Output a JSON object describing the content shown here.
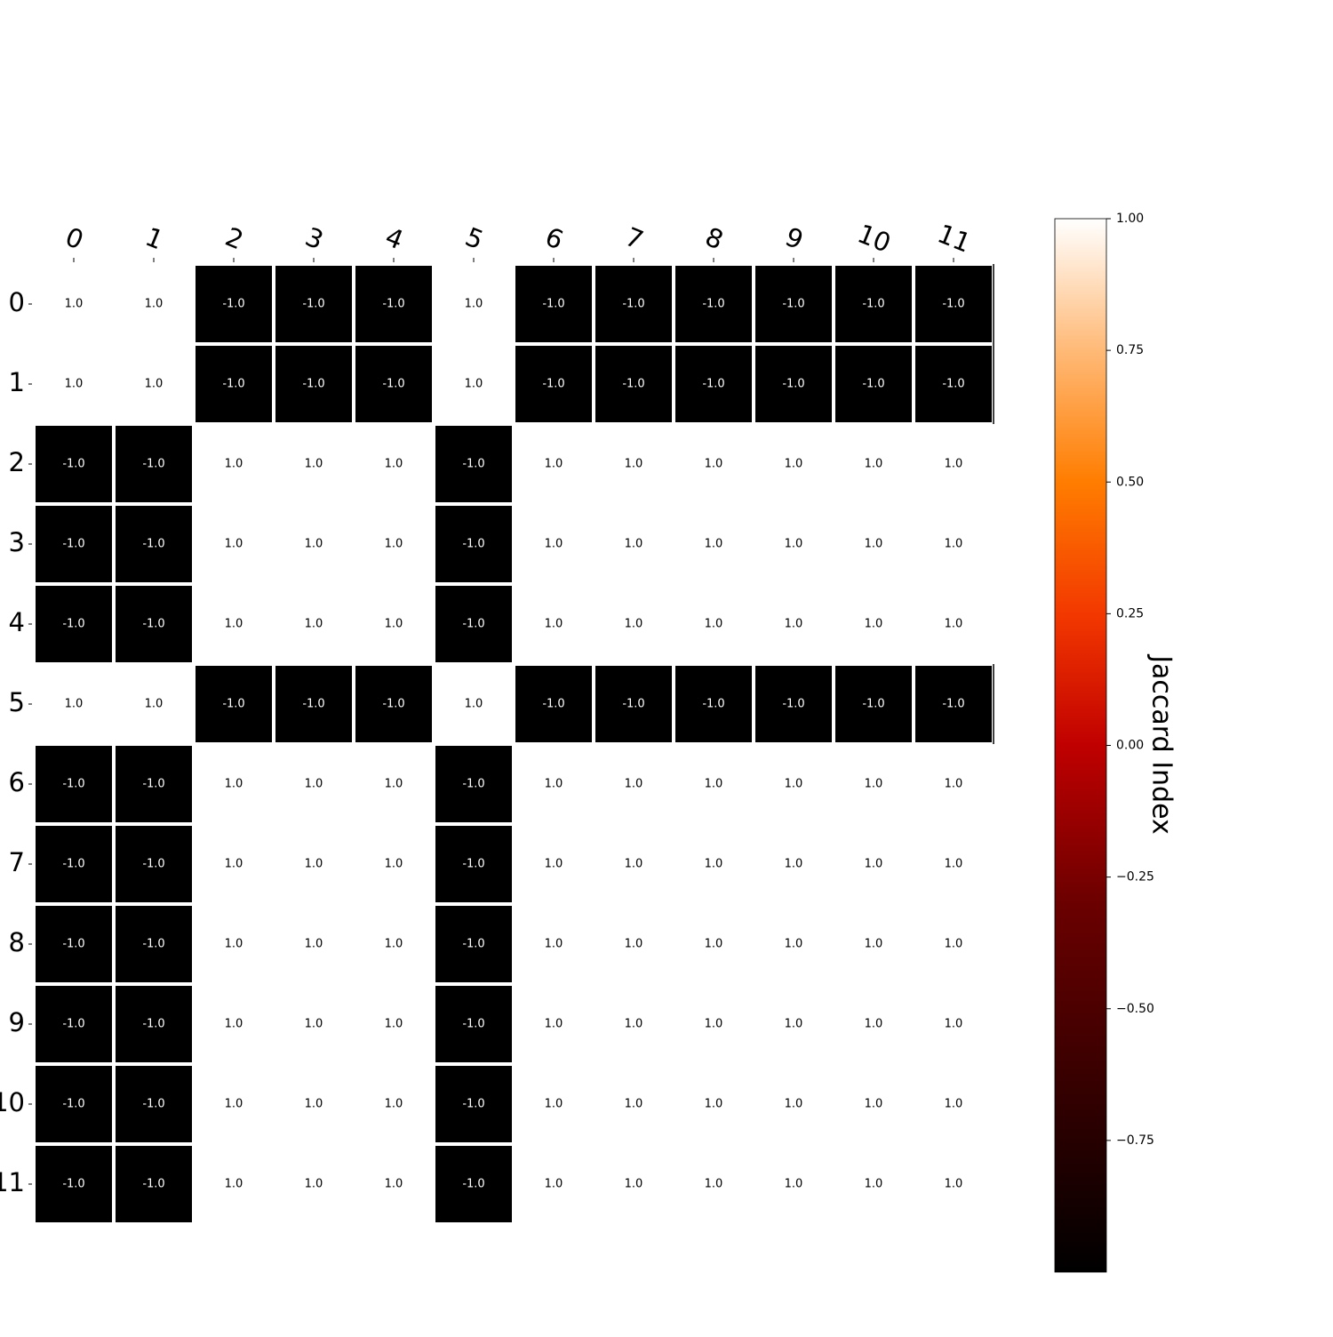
{
  "chart_data": {
    "type": "heatmap",
    "x_categories": [
      "0",
      "1",
      "2",
      "3",
      "4",
      "5",
      "6",
      "7",
      "8",
      "9",
      "10",
      "11"
    ],
    "y_categories": [
      "0",
      "1",
      "2",
      "3",
      "4",
      "5",
      "6",
      "7",
      "8",
      "9",
      "10",
      "11"
    ],
    "values": [
      [
        1.0,
        1.0,
        -1.0,
        -1.0,
        -1.0,
        1.0,
        -1.0,
        -1.0,
        -1.0,
        -1.0,
        -1.0,
        -1.0
      ],
      [
        1.0,
        1.0,
        -1.0,
        -1.0,
        -1.0,
        1.0,
        -1.0,
        -1.0,
        -1.0,
        -1.0,
        -1.0,
        -1.0
      ],
      [
        -1.0,
        -1.0,
        1.0,
        1.0,
        1.0,
        -1.0,
        1.0,
        1.0,
        1.0,
        1.0,
        1.0,
        1.0
      ],
      [
        -1.0,
        -1.0,
        1.0,
        1.0,
        1.0,
        -1.0,
        1.0,
        1.0,
        1.0,
        1.0,
        1.0,
        1.0
      ],
      [
        -1.0,
        -1.0,
        1.0,
        1.0,
        1.0,
        -1.0,
        1.0,
        1.0,
        1.0,
        1.0,
        1.0,
        1.0
      ],
      [
        1.0,
        1.0,
        -1.0,
        -1.0,
        -1.0,
        1.0,
        -1.0,
        -1.0,
        -1.0,
        -1.0,
        -1.0,
        -1.0
      ],
      [
        -1.0,
        -1.0,
        1.0,
        1.0,
        1.0,
        -1.0,
        1.0,
        1.0,
        1.0,
        1.0,
        1.0,
        1.0
      ],
      [
        -1.0,
        -1.0,
        1.0,
        1.0,
        1.0,
        -1.0,
        1.0,
        1.0,
        1.0,
        1.0,
        1.0,
        1.0
      ],
      [
        -1.0,
        -1.0,
        1.0,
        1.0,
        1.0,
        -1.0,
        1.0,
        1.0,
        1.0,
        1.0,
        1.0,
        1.0
      ],
      [
        -1.0,
        -1.0,
        1.0,
        1.0,
        1.0,
        -1.0,
        1.0,
        1.0,
        1.0,
        1.0,
        1.0,
        1.0
      ],
      [
        -1.0,
        -1.0,
        1.0,
        1.0,
        1.0,
        -1.0,
        1.0,
        1.0,
        1.0,
        1.0,
        1.0,
        1.0
      ],
      [
        -1.0,
        -1.0,
        1.0,
        1.0,
        1.0,
        -1.0,
        1.0,
        1.0,
        1.0,
        1.0,
        1.0,
        1.0
      ]
    ],
    "cell_labels": [
      [
        "1.0",
        "1.0",
        "-1.0",
        "-1.0",
        "-1.0",
        "1.0",
        "-1.0",
        "-1.0",
        "-1.0",
        "-1.0",
        "-1.0",
        "-1.0"
      ],
      [
        "1.0",
        "1.0",
        "-1.0",
        "-1.0",
        "-1.0",
        "1.0",
        "-1.0",
        "-1.0",
        "-1.0",
        "-1.0",
        "-1.0",
        "-1.0"
      ],
      [
        "-1.0",
        "-1.0",
        "1.0",
        "1.0",
        "1.0",
        "-1.0",
        "1.0",
        "1.0",
        "1.0",
        "1.0",
        "1.0",
        "1.0"
      ],
      [
        "-1.0",
        "-1.0",
        "1.0",
        "1.0",
        "1.0",
        "-1.0",
        "1.0",
        "1.0",
        "1.0",
        "1.0",
        "1.0",
        "1.0"
      ],
      [
        "-1.0",
        "-1.0",
        "1.0",
        "1.0",
        "1.0",
        "-1.0",
        "1.0",
        "1.0",
        "1.0",
        "1.0",
        "1.0",
        "1.0"
      ],
      [
        "1.0",
        "1.0",
        "-1.0",
        "-1.0",
        "-1.0",
        "1.0",
        "-1.0",
        "-1.0",
        "-1.0",
        "-1.0",
        "-1.0",
        "-1.0"
      ],
      [
        "-1.0",
        "-1.0",
        "1.0",
        "1.0",
        "1.0",
        "-1.0",
        "1.0",
        "1.0",
        "1.0",
        "1.0",
        "1.0",
        "1.0"
      ],
      [
        "-1.0",
        "-1.0",
        "1.0",
        "1.0",
        "1.0",
        "-1.0",
        "1.0",
        "1.0",
        "1.0",
        "1.0",
        "1.0",
        "1.0"
      ],
      [
        "-1.0",
        "-1.0",
        "1.0",
        "1.0",
        "1.0",
        "-1.0",
        "1.0",
        "1.0",
        "1.0",
        "1.0",
        "1.0",
        "1.0"
      ],
      [
        "-1.0",
        "-1.0",
        "1.0",
        "1.0",
        "1.0",
        "-1.0",
        "1.0",
        "1.0",
        "1.0",
        "1.0",
        "1.0",
        "1.0"
      ],
      [
        "-1.0",
        "-1.0",
        "1.0",
        "1.0",
        "1.0",
        "-1.0",
        "1.0",
        "1.0",
        "1.0",
        "1.0",
        "1.0",
        "1.0"
      ],
      [
        "-1.0",
        "-1.0",
        "1.0",
        "1.0",
        "1.0",
        "-1.0",
        "1.0",
        "1.0",
        "1.0",
        "1.0",
        "1.0",
        "1.0"
      ]
    ],
    "colormap": "gist_heat",
    "colorbar": {
      "label": "Jaccard Index",
      "range": [
        -1.0,
        1.0
      ],
      "ticks": [
        1.0,
        0.75,
        0.5,
        0.25,
        0.0,
        -0.25,
        -0.5,
        -0.75
      ],
      "tick_labels": [
        "1.00",
        "0.75",
        "0.50",
        "0.25",
        "0.00",
        "−0.25",
        "−0.50",
        "−0.75"
      ]
    },
    "grid": false,
    "x_axis_position": "top"
  }
}
